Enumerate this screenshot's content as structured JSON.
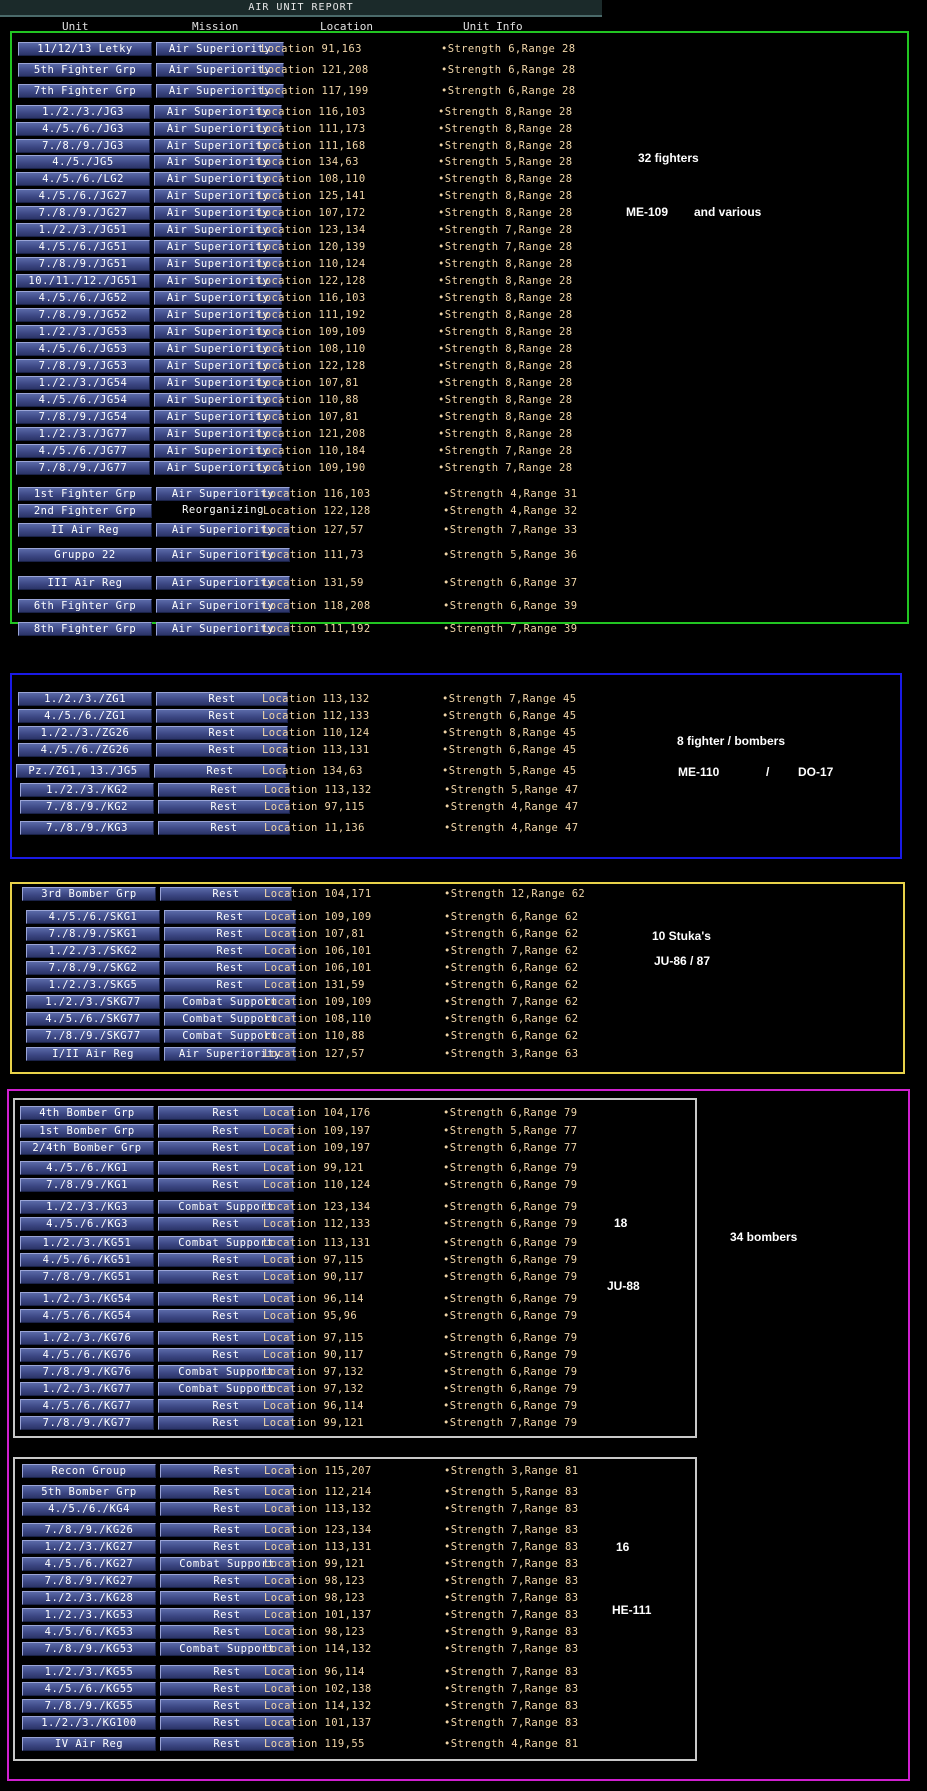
{
  "window": {
    "title": "AIR UNIT REPORT"
  },
  "columns": {
    "unit": "Unit",
    "mission": "Mission",
    "location": "Location",
    "info": "Unit Info"
  },
  "frames": [
    {
      "name": "fighters-frame",
      "color": "#22c522"
    },
    {
      "name": "fighter-bombers-frame",
      "color": "#1a1ae6"
    },
    {
      "name": "stukas-frame",
      "color": "#e8d24a"
    },
    {
      "name": "bombers-frame",
      "color": "#d020d0"
    },
    {
      "name": "ju88-frame",
      "color": "#c8c8c8"
    },
    {
      "name": "he111-frame",
      "color": "#c8c8c8"
    }
  ],
  "notes": [
    "32 fighters",
    "ME-109",
    "and various",
    "8 fighter / bombers",
    "ME-110",
    "/",
    "DO-17",
    "10 Stuka's",
    "JU-86 / 87",
    "18",
    "JU-88",
    "34 bombers",
    "16",
    "HE-111"
  ],
  "rows": [
    {
      "unit": "11/12/13 Letky",
      "mission": "Air Superiority",
      "location": "Location 91,163",
      "info": "•Strength 6,Range 28"
    },
    {
      "unit": "5th Fighter Grp",
      "mission": "Air Superiority",
      "location": "Location 121,208",
      "info": "•Strength 6,Range 28"
    },
    {
      "unit": "7th Fighter Grp",
      "mission": "Air Superiority",
      "location": "Location 117,199",
      "info": "•Strength 6,Range 28"
    },
    {
      "unit": "1./2./3./JG3",
      "mission": "Air Superiority",
      "location": "Location 116,103",
      "info": "•Strength 8,Range 28"
    },
    {
      "unit": "4./5./6./JG3",
      "mission": "Air Superiority",
      "location": "Location 111,173",
      "info": "•Strength 8,Range 28"
    },
    {
      "unit": "7./8./9./JG3",
      "mission": "Air Superiority",
      "location": "Location 111,168",
      "info": "•Strength 8,Range 28"
    },
    {
      "unit": "4./5./JG5",
      "mission": "Air Superiority",
      "location": "Location 134,63",
      "info": "•Strength 5,Range 28"
    },
    {
      "unit": "4./5./6./LG2",
      "mission": "Air Superiority",
      "location": "Location 108,110",
      "info": "•Strength 8,Range 28"
    },
    {
      "unit": "4./5./6./JG27",
      "mission": "Air Superiority",
      "location": "Location 125,141",
      "info": "•Strength 8,Range 28"
    },
    {
      "unit": "7./8./9./JG27",
      "mission": "Air Superiority",
      "location": "Location 107,172",
      "info": "•Strength 8,Range 28"
    },
    {
      "unit": "1./2./3./JG51",
      "mission": "Air Superiority",
      "location": "Location 123,134",
      "info": "•Strength 7,Range 28"
    },
    {
      "unit": "4./5./6./JG51",
      "mission": "Air Superiority",
      "location": "Location 120,139",
      "info": "•Strength 7,Range 28"
    },
    {
      "unit": "7./8./9./JG51",
      "mission": "Air Superiority",
      "location": "Location 110,124",
      "info": "•Strength 8,Range 28"
    },
    {
      "unit": "10./11./12./JG51",
      "mission": "Air Superiority",
      "location": "Location 122,128",
      "info": "•Strength 8,Range 28"
    },
    {
      "unit": "4./5./6./JG52",
      "mission": "Air Superiority",
      "location": "Location 116,103",
      "info": "•Strength 8,Range 28"
    },
    {
      "unit": "7./8./9./JG52",
      "mission": "Air Superiority",
      "location": "Location 111,192",
      "info": "•Strength 8,Range 28"
    },
    {
      "unit": "1./2./3./JG53",
      "mission": "Air Superiority",
      "location": "Location 109,109",
      "info": "•Strength 8,Range 28"
    },
    {
      "unit": "4./5./6./JG53",
      "mission": "Air Superiority",
      "location": "Location 108,110",
      "info": "•Strength 8,Range 28"
    },
    {
      "unit": "7./8./9./JG53",
      "mission": "Air Superiority",
      "location": "Location 122,128",
      "info": "•Strength 8,Range 28"
    },
    {
      "unit": "1./2./3./JG54",
      "mission": "Air Superiority",
      "location": "Location 107,81",
      "info": "•Strength 8,Range 28"
    },
    {
      "unit": "4./5./6./JG54",
      "mission": "Air Superiority",
      "location": "Location 110,88",
      "info": "•Strength 8,Range 28"
    },
    {
      "unit": "7./8./9./JG54",
      "mission": "Air Superiority",
      "location": "Location 107,81",
      "info": "•Strength 8,Range 28"
    },
    {
      "unit": "1./2./3./JG77",
      "mission": "Air Superiority",
      "location": "Location 121,208",
      "info": "•Strength 8,Range 28"
    },
    {
      "unit": "4./5./6./JG77",
      "mission": "Air Superiority",
      "location": "Location 110,184",
      "info": "•Strength 7,Range 28"
    },
    {
      "unit": "7./8./9./JG77",
      "mission": "Air Superiority",
      "location": "Location 109,190",
      "info": "•Strength 7,Range 28"
    },
    {
      "unit": "1st Fighter Grp",
      "mission": "Air Superiority",
      "location": "Location 116,103",
      "info": "•Strength 4,Range 31"
    },
    {
      "unit": "2nd Fighter Grp",
      "mission": "Reorganizing",
      "location": "Location 122,128",
      "info": "•Strength 4,Range 32"
    },
    {
      "unit": "II Air Reg",
      "mission": "Air Superiority",
      "location": "Location 127,57",
      "info": "•Strength 7,Range 33"
    },
    {
      "unit": "Gruppo 22",
      "mission": "Air Superiority",
      "location": "Location 111,73",
      "info": "•Strength 5,Range 36"
    },
    {
      "unit": "III Air Reg",
      "mission": "Air Superiority",
      "location": "Location 131,59",
      "info": "•Strength 6,Range 37"
    },
    {
      "unit": "6th Fighter Grp",
      "mission": "Air Superiority",
      "location": "Location 118,208",
      "info": "•Strength 6,Range 39"
    },
    {
      "unit": "8th Fighter Grp",
      "mission": "Air Superiority",
      "location": "Location 111,192",
      "info": "•Strength 7,Range 39"
    },
    {
      "unit": "1./2./3./ZG1",
      "mission": "Rest",
      "location": "Location 113,132",
      "info": "•Strength 7,Range 45"
    },
    {
      "unit": "4./5./6./ZG1",
      "mission": "Rest",
      "location": "Location 112,133",
      "info": "•Strength 6,Range 45"
    },
    {
      "unit": "1./2./3./ZG26",
      "mission": "Rest",
      "location": "Location 110,124",
      "info": "•Strength 8,Range 45"
    },
    {
      "unit": "4./5./6./ZG26",
      "mission": "Rest",
      "location": "Location 113,131",
      "info": "•Strength 6,Range 45"
    },
    {
      "unit": "Pz./ZG1, 13./JG5",
      "mission": "Rest",
      "location": "Location 134,63",
      "info": "•Strength 5,Range 45"
    },
    {
      "unit": "1./2./3./KG2",
      "mission": "Rest",
      "location": "Location 113,132",
      "info": "•Strength 5,Range 47"
    },
    {
      "unit": "7./8./9./KG2",
      "mission": "Rest",
      "location": "Location 97,115",
      "info": "•Strength 4,Range 47"
    },
    {
      "unit": "7./8./9./KG3",
      "mission": "Rest",
      "location": "Location 11,136",
      "info": "•Strength 4,Range 47"
    },
    {
      "unit": "3rd Bomber Grp",
      "mission": "Rest",
      "location": "Location 104,171",
      "info": "•Strength 12,Range 62"
    },
    {
      "unit": "4./5./6./SKG1",
      "mission": "Rest",
      "location": "Location 109,109",
      "info": "•Strength 6,Range 62"
    },
    {
      "unit": "7./8./9./SKG1",
      "mission": "Rest",
      "location": "Location 107,81",
      "info": "•Strength 6,Range 62"
    },
    {
      "unit": "1./2./3./SKG2",
      "mission": "Rest",
      "location": "Location 106,101",
      "info": "•Strength 7,Range 62"
    },
    {
      "unit": "7./8./9./SKG2",
      "mission": "Rest",
      "location": "Location 106,101",
      "info": "•Strength 6,Range 62"
    },
    {
      "unit": "1./2./3./SKG5",
      "mission": "Rest",
      "location": "Location 131,59",
      "info": "•Strength 6,Range 62"
    },
    {
      "unit": "1./2./3./SKG77",
      "mission": "Combat Support",
      "location": "Location 109,109",
      "info": "•Strength 7,Range 62"
    },
    {
      "unit": "4./5./6./SKG77",
      "mission": "Combat Support",
      "location": "Location 108,110",
      "info": "•Strength 6,Range 62"
    },
    {
      "unit": "7./8./9./SKG77",
      "mission": "Combat Support",
      "location": "Location 110,88",
      "info": "•Strength 6,Range 62"
    },
    {
      "unit": "I/II Air Reg",
      "mission": "Air Superiority",
      "location": "Location 127,57",
      "info": "•Strength 3,Range 63"
    },
    {
      "unit": "4th Bomber Grp",
      "mission": "Rest",
      "location": "Location 104,176",
      "info": "•Strength 6,Range 79"
    },
    {
      "unit": "1st Bomber Grp",
      "mission": "Rest",
      "location": "Location 109,197",
      "info": "•Strength 5,Range 77"
    },
    {
      "unit": "2/4th Bomber Grp",
      "mission": "Rest",
      "location": "Location 109,197",
      "info": "•Strength 6,Range 77"
    },
    {
      "unit": "4./5./6./KG1",
      "mission": "Rest",
      "location": "Location 99,121",
      "info": "•Strength 6,Range 79"
    },
    {
      "unit": "7./8./9./KG1",
      "mission": "Rest",
      "location": "Location 110,124",
      "info": "•Strength 6,Range 79"
    },
    {
      "unit": "1./2./3./KG3",
      "mission": "Combat Support",
      "location": "Location 123,134",
      "info": "•Strength 6,Range 79"
    },
    {
      "unit": "4./5./6./KG3",
      "mission": "Rest",
      "location": "Location 112,133",
      "info": "•Strength 6,Range 79"
    },
    {
      "unit": "1./2./3./KG51",
      "mission": "Combat Support",
      "location": "Location 113,131",
      "info": "•Strength 6,Range 79"
    },
    {
      "unit": "4./5./6./KG51",
      "mission": "Rest",
      "location": "Location 97,115",
      "info": "•Strength 6,Range 79"
    },
    {
      "unit": "7./8./9./KG51",
      "mission": "Rest",
      "location": "Location 90,117",
      "info": "•Strength 6,Range 79"
    },
    {
      "unit": "1./2./3./KG54",
      "mission": "Rest",
      "location": "Location 96,114",
      "info": "•Strength 6,Range 79"
    },
    {
      "unit": "4./5./6./KG54",
      "mission": "Rest",
      "location": "Location 95,96",
      "info": "•Strength 6,Range 79"
    },
    {
      "unit": "1./2./3./KG76",
      "mission": "Rest",
      "location": "Location 97,115",
      "info": "•Strength 6,Range 79"
    },
    {
      "unit": "4./5./6./KG76",
      "mission": "Rest",
      "location": "Location 90,117",
      "info": "•Strength 6,Range 79"
    },
    {
      "unit": "7./8./9./KG76",
      "mission": "Combat Support",
      "location": "Location 97,132",
      "info": "•Strength 6,Range 79"
    },
    {
      "unit": "1./2./3./KG77",
      "mission": "Combat Support",
      "location": "Location 97,132",
      "info": "•Strength 6,Range 79"
    },
    {
      "unit": "4./5./6./KG77",
      "mission": "Rest",
      "location": "Location 96,114",
      "info": "•Strength 6,Range 79"
    },
    {
      "unit": "7./8./9./KG77",
      "mission": "Rest",
      "location": "Location 99,121",
      "info": "•Strength 7,Range 79"
    },
    {
      "unit": "Recon Group",
      "mission": "Rest",
      "location": "Location 115,207",
      "info": "•Strength 3,Range 81"
    },
    {
      "unit": "5th Bomber Grp",
      "mission": "Rest",
      "location": "Location 112,214",
      "info": "•Strength 5,Range 83"
    },
    {
      "unit": "4./5./6./KG4",
      "mission": "Rest",
      "location": "Location 113,132",
      "info": "•Strength 7,Range 83"
    },
    {
      "unit": "7./8./9./KG26",
      "mission": "Rest",
      "location": "Location 123,134",
      "info": "•Strength 7,Range 83"
    },
    {
      "unit": "1./2./3./KG27",
      "mission": "Rest",
      "location": "Location 113,131",
      "info": "•Strength 7,Range 83"
    },
    {
      "unit": "4./5./6./KG27",
      "mission": "Combat Support",
      "location": "Location 99,121",
      "info": "•Strength 7,Range 83"
    },
    {
      "unit": "7./8./9./KG27",
      "mission": "Rest",
      "location": "Location 98,123",
      "info": "•Strength 7,Range 83"
    },
    {
      "unit": "1./2./3./KG28",
      "mission": "Rest",
      "location": "Location 98,123",
      "info": "•Strength 7,Range 83"
    },
    {
      "unit": "1./2./3./KG53",
      "mission": "Rest",
      "location": "Location 101,137",
      "info": "•Strength 7,Range 83"
    },
    {
      "unit": "4./5./6./KG53",
      "mission": "Rest",
      "location": "Location 98,123",
      "info": "•Strength 9,Range 83"
    },
    {
      "unit": "7./8./9./KG53",
      "mission": "Combat Support",
      "location": "Location 114,132",
      "info": "•Strength 7,Range 83"
    },
    {
      "unit": "1./2./3./KG55",
      "mission": "Rest",
      "location": "Location 96,114",
      "info": "•Strength 7,Range 83"
    },
    {
      "unit": "4./5./6./KG55",
      "mission": "Rest",
      "location": "Location 102,138",
      "info": "•Strength 7,Range 83"
    },
    {
      "unit": "7./8./9./KG55",
      "mission": "Rest",
      "location": "Location 114,132",
      "info": "•Strength 7,Range 83"
    },
    {
      "unit": "1./2./3./KG100",
      "mission": "Rest",
      "location": "Location 101,137",
      "info": "•Strength 7,Range 83"
    },
    {
      "unit": "IV Air Reg",
      "mission": "Rest",
      "location": "Location 119,55",
      "info": "•Strength 4,Range 81"
    }
  ]
}
